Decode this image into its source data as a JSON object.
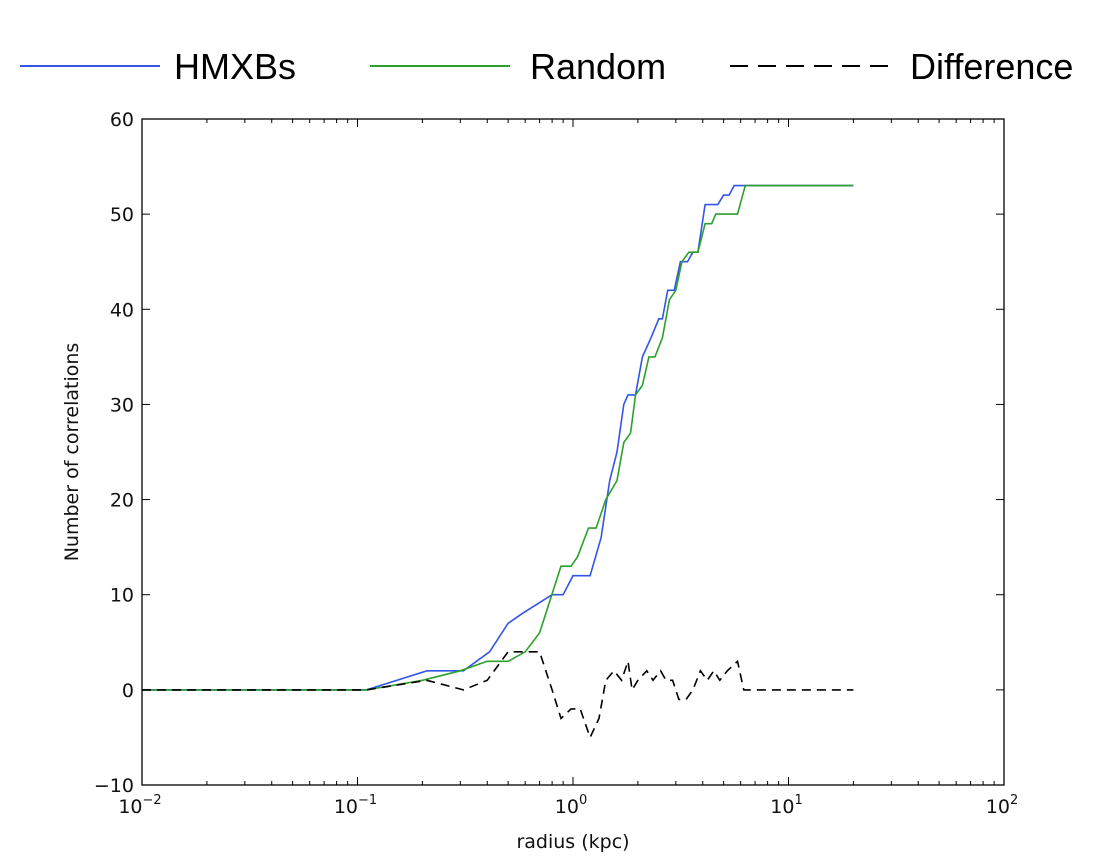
{
  "chart_data": {
    "type": "line",
    "title": "",
    "xlabel": "radius (kpc)",
    "ylabel": "Number of correlations",
    "xscale": "log",
    "xlim": [
      0.01,
      100
    ],
    "ylim": [
      -10,
      60
    ],
    "xticks": [
      {
        "base": "10",
        "exp": "-2",
        "value": 0.01
      },
      {
        "base": "10",
        "exp": "-1",
        "value": 0.1
      },
      {
        "base": "10",
        "exp": "0",
        "value": 1
      },
      {
        "base": "10",
        "exp": "1",
        "value": 10
      },
      {
        "base": "10",
        "exp": "2",
        "value": 100
      }
    ],
    "yticks": [
      "-10",
      "0",
      "10",
      "20",
      "30",
      "40",
      "50",
      "60"
    ],
    "grid": false,
    "legend_position": "top",
    "series": [
      {
        "name": "HMXBs",
        "color": "#3355e8",
        "style": "solid",
        "points": [
          [
            0.01,
            0
          ],
          [
            0.11,
            0
          ],
          [
            0.21,
            2
          ],
          [
            0.31,
            2
          ],
          [
            0.41,
            4
          ],
          [
            0.5,
            7
          ],
          [
            0.58,
            8
          ],
          [
            0.8,
            10
          ],
          [
            0.9,
            10
          ],
          [
            1.0,
            12
          ],
          [
            1.2,
            12
          ],
          [
            1.35,
            16
          ],
          [
            1.48,
            22
          ],
          [
            1.6,
            25
          ],
          [
            1.72,
            30
          ],
          [
            1.8,
            31
          ],
          [
            1.95,
            31
          ],
          [
            2.1,
            35
          ],
          [
            2.3,
            37
          ],
          [
            2.5,
            39
          ],
          [
            2.6,
            39
          ],
          [
            2.75,
            42
          ],
          [
            2.95,
            42
          ],
          [
            3.15,
            45
          ],
          [
            3.4,
            45
          ],
          [
            3.6,
            46
          ],
          [
            3.8,
            46
          ],
          [
            4.1,
            51
          ],
          [
            4.7,
            51
          ],
          [
            5.0,
            52
          ],
          [
            5.3,
            52
          ],
          [
            5.6,
            53
          ],
          [
            20,
            53
          ]
        ]
      },
      {
        "name": "Random",
        "color": "#2ca02c",
        "style": "solid",
        "points": [
          [
            0.01,
            0
          ],
          [
            0.11,
            0
          ],
          [
            0.2,
            1
          ],
          [
            0.3,
            2
          ],
          [
            0.4,
            3
          ],
          [
            0.5,
            3
          ],
          [
            0.6,
            4
          ],
          [
            0.7,
            6
          ],
          [
            0.88,
            13
          ],
          [
            0.98,
            13
          ],
          [
            1.05,
            14
          ],
          [
            1.18,
            17
          ],
          [
            1.28,
            17
          ],
          [
            1.42,
            20
          ],
          [
            1.6,
            22
          ],
          [
            1.72,
            26
          ],
          [
            1.85,
            27
          ],
          [
            1.95,
            31
          ],
          [
            2.1,
            32
          ],
          [
            2.25,
            35
          ],
          [
            2.4,
            35
          ],
          [
            2.6,
            37
          ],
          [
            2.8,
            41
          ],
          [
            3.0,
            42
          ],
          [
            3.2,
            45
          ],
          [
            3.45,
            46
          ],
          [
            3.8,
            46
          ],
          [
            4.1,
            49
          ],
          [
            4.4,
            49
          ],
          [
            4.6,
            50
          ],
          [
            5.8,
            50
          ],
          [
            6.3,
            53
          ],
          [
            20,
            53
          ]
        ]
      },
      {
        "name": "Difference",
        "color": "#000000",
        "style": "dashed",
        "points": [
          [
            0.01,
            0
          ],
          [
            0.11,
            0
          ],
          [
            0.21,
            1
          ],
          [
            0.31,
            0
          ],
          [
            0.4,
            1
          ],
          [
            0.5,
            4
          ],
          [
            0.58,
            4
          ],
          [
            0.7,
            4
          ],
          [
            0.8,
            0
          ],
          [
            0.88,
            -3
          ],
          [
            0.98,
            -2
          ],
          [
            1.08,
            -2
          ],
          [
            1.2,
            -5
          ],
          [
            1.32,
            -3
          ],
          [
            1.42,
            1
          ],
          [
            1.55,
            2
          ],
          [
            1.68,
            1
          ],
          [
            1.8,
            3
          ],
          [
            1.88,
            0
          ],
          [
            2.0,
            1
          ],
          [
            2.2,
            2
          ],
          [
            2.35,
            1
          ],
          [
            2.55,
            2
          ],
          [
            2.7,
            1
          ],
          [
            2.9,
            1
          ],
          [
            3.1,
            -1
          ],
          [
            3.35,
            -1
          ],
          [
            3.6,
            0
          ],
          [
            3.9,
            2
          ],
          [
            4.2,
            1
          ],
          [
            4.5,
            2
          ],
          [
            4.8,
            1
          ],
          [
            5.2,
            2
          ],
          [
            5.8,
            3
          ],
          [
            6.2,
            0
          ],
          [
            20,
            0
          ]
        ]
      }
    ]
  }
}
